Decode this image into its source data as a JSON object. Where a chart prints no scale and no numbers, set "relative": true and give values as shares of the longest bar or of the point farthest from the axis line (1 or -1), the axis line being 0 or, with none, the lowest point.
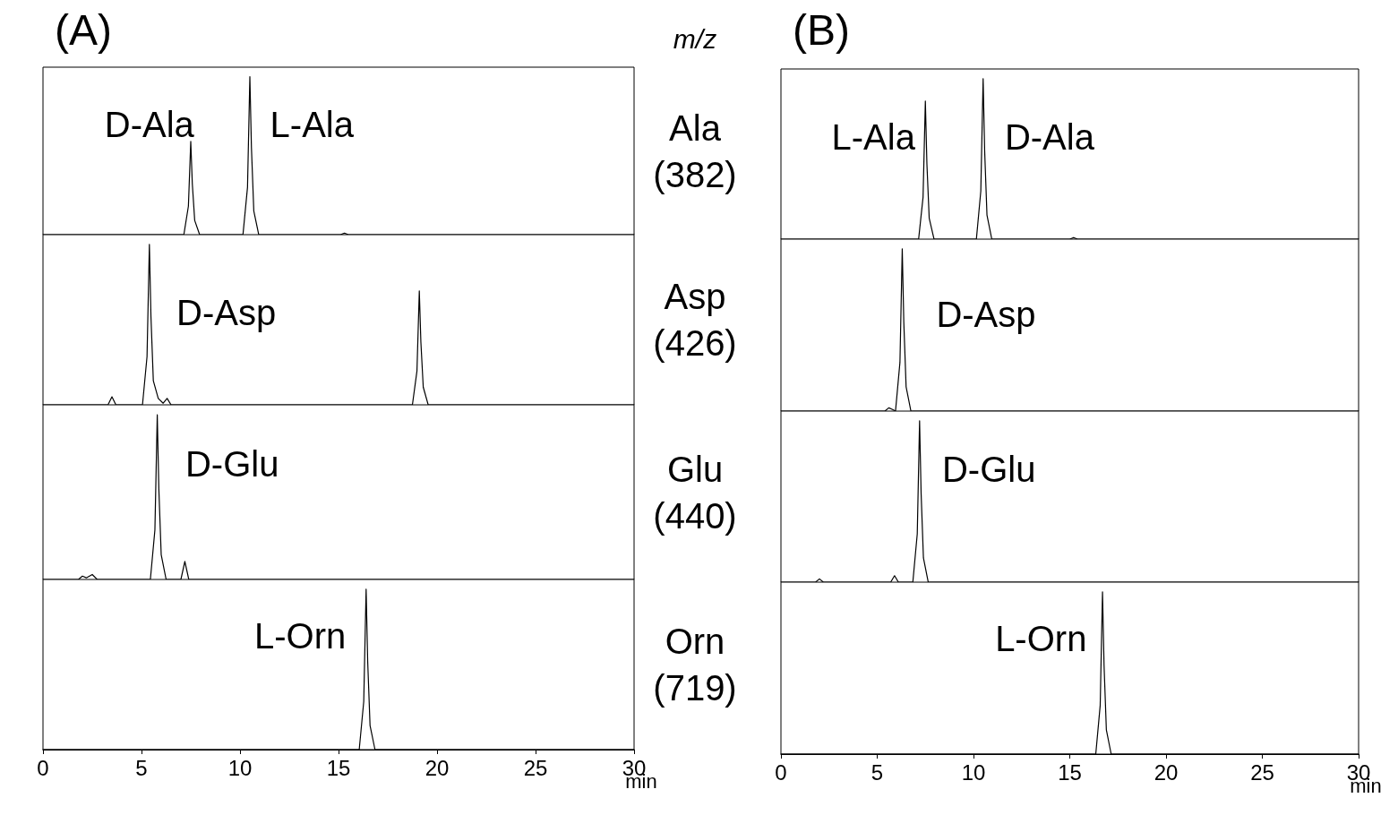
{
  "chart_data": [
    {
      "type": "line",
      "title": "(A)",
      "relative": true,
      "color": "#000000",
      "xlim": [
        0,
        30
      ],
      "tick_labels": false,
      "x": [
        0,
        7.15,
        7.38,
        7.5,
        7.58,
        7.7,
        7.95,
        10.15,
        10.38,
        10.5,
        10.58,
        10.7,
        10.95,
        15.1,
        15.3,
        15.5,
        30
      ],
      "values": [
        0,
        0,
        0.18,
        0.59,
        0.32,
        0.09,
        0,
        0,
        0.3,
        1,
        0.55,
        0.15,
        0,
        0,
        0.01,
        0,
        0
      ],
      "annotations": [
        "m/z",
        "Ala\n(382)",
        "D-Ala",
        "L-Ala"
      ]
    },
    {
      "type": "line",
      "relative": true,
      "color": "#000000",
      "xlim": [
        0,
        30
      ],
      "tick_labels": false,
      "x": [
        0,
        3.3,
        3.5,
        3.7,
        5.05,
        5.28,
        5.4,
        5.48,
        5.6,
        5.85,
        6.1,
        6.3,
        6.5,
        18.75,
        18.98,
        19.1,
        19.18,
        19.3,
        19.55,
        30
      ],
      "values": [
        0,
        0,
        0.05,
        0,
        0,
        0.3,
        1,
        0.55,
        0.15,
        0.04,
        0.01,
        0.04,
        0,
        0,
        0.21,
        0.71,
        0.39,
        0.11,
        0,
        0
      ],
      "annotations": [
        "Asp\n(426)",
        "D-Asp"
      ]
    },
    {
      "type": "line",
      "relative": true,
      "color": "#000000",
      "xlim": [
        0,
        30
      ],
      "tick_labels": false,
      "x": [
        0,
        1.8,
        2.0,
        2.2,
        2.5,
        2.75,
        5.45,
        5.68,
        5.8,
        5.88,
        6.0,
        6.25,
        7.0,
        7.2,
        7.4,
        30
      ],
      "values": [
        0,
        0,
        0.02,
        0.01,
        0.03,
        0,
        0,
        0.3,
        1,
        0.55,
        0.15,
        0,
        0,
        0.11,
        0,
        0
      ],
      "annotations": [
        "Glu\n(440)",
        "D-Glu"
      ]
    },
    {
      "type": "line",
      "relative": true,
      "color": "#000000",
      "xlim": [
        0,
        30
      ],
      "xticks": [
        0,
        5,
        10,
        15,
        20,
        25,
        30
      ],
      "xlabel": "min",
      "tick_labels": "x",
      "x": [
        0,
        16.05,
        16.28,
        16.4,
        16.48,
        16.6,
        16.85,
        30
      ],
      "values": [
        0,
        0,
        0.3,
        1,
        0.55,
        0.15,
        0,
        0
      ],
      "annotations": [
        "Orn\n(719)",
        "L-Orn"
      ]
    },
    {
      "type": "line",
      "title": "(B)",
      "relative": true,
      "color": "#000000",
      "xlim": [
        0,
        30
      ],
      "tick_labels": false,
      "x": [
        0,
        7.15,
        7.38,
        7.5,
        7.58,
        7.7,
        7.95,
        10.15,
        10.38,
        10.5,
        10.58,
        10.7,
        10.95,
        15.0,
        15.2,
        15.4,
        30
      ],
      "values": [
        0,
        0,
        0.26,
        0.86,
        0.47,
        0.13,
        0,
        0,
        0.3,
        1,
        0.55,
        0.15,
        0,
        0,
        0.01,
        0,
        0
      ],
      "annotations": [
        "L-Ala",
        "D-Ala"
      ]
    },
    {
      "type": "line",
      "relative": true,
      "color": "#000000",
      "xlim": [
        0,
        30
      ],
      "tick_labels": false,
      "x": [
        0,
        5.4,
        5.6,
        5.8,
        5.95,
        6.18,
        6.3,
        6.38,
        6.5,
        6.75,
        30
      ],
      "values": [
        0,
        0,
        0.02,
        0.01,
        0,
        0.3,
        1,
        0.55,
        0.15,
        0,
        0
      ],
      "annotations": [
        "D-Asp"
      ]
    },
    {
      "type": "line",
      "relative": true,
      "color": "#000000",
      "xlim": [
        0,
        30
      ],
      "tick_labels": false,
      "x": [
        0,
        1.8,
        2.0,
        2.2,
        5.7,
        5.9,
        6.1,
        6.85,
        7.08,
        7.2,
        7.28,
        7.4,
        7.65,
        30
      ],
      "values": [
        0,
        0,
        0.02,
        0,
        0,
        0.04,
        0,
        0,
        0.3,
        1,
        0.55,
        0.15,
        0,
        0
      ],
      "annotations": [
        "D-Glu"
      ]
    },
    {
      "type": "line",
      "relative": true,
      "color": "#000000",
      "xlim": [
        0,
        30
      ],
      "xticks": [
        0,
        5,
        10,
        15,
        20,
        25,
        30
      ],
      "xlabel": "min",
      "tick_labels": "x",
      "x": [
        0,
        16.35,
        16.58,
        16.7,
        16.78,
        16.9,
        17.15,
        30
      ],
      "values": [
        0,
        0,
        0.3,
        1,
        0.55,
        0.15,
        0,
        0
      ],
      "annotations": [
        "L-Orn"
      ]
    }
  ]
}
